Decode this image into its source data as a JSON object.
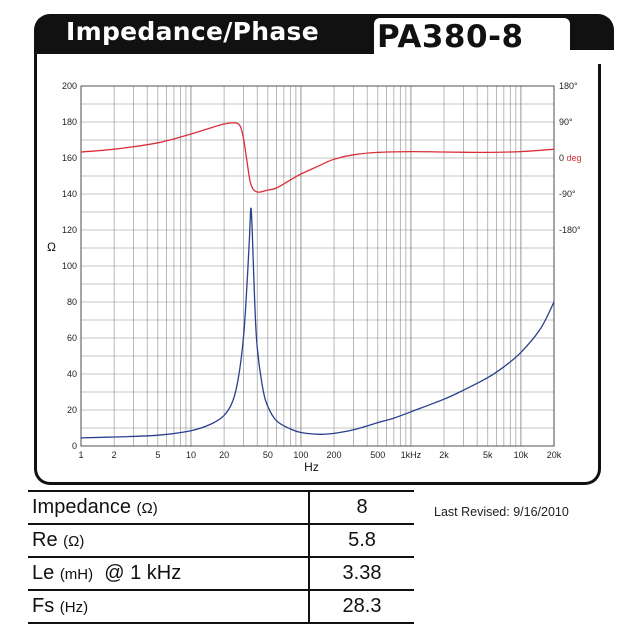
{
  "header": {
    "title": "Impedance/Phase",
    "model": "PA380-8"
  },
  "chart_data": {
    "type": "line",
    "x_scale": "log",
    "xlim": [
      1,
      20000
    ],
    "xlabel": "Hz",
    "x_ticks": [
      {
        "v": 1,
        "label": "1"
      },
      {
        "v": 2,
        "label": "2"
      },
      {
        "v": 5,
        "label": "5"
      },
      {
        "v": 10,
        "label": "10"
      },
      {
        "v": 20,
        "label": "20"
      },
      {
        "v": 50,
        "label": "50"
      },
      {
        "v": 100,
        "label": "100"
      },
      {
        "v": 200,
        "label": "200"
      },
      {
        "v": 500,
        "label": "500"
      },
      {
        "v": 1000,
        "label": "1kHz"
      },
      {
        "v": 2000,
        "label": "2k"
      },
      {
        "v": 5000,
        "label": "5k"
      },
      {
        "v": 10000,
        "label": "10k"
      },
      {
        "v": 20000,
        "label": "20k"
      }
    ],
    "ylabel": "Ω",
    "ylim": [
      0,
      200
    ],
    "y_ticks": [
      0,
      20,
      40,
      60,
      80,
      100,
      120,
      140,
      160,
      180,
      200
    ],
    "y2_ticks": [
      {
        "v": 180,
        "label": "180°"
      },
      {
        "v": 90,
        "label": "90°"
      },
      {
        "v": 0,
        "label": "0",
        "unit": "deg"
      },
      {
        "v": -90,
        "label": "-90°"
      },
      {
        "v": -180,
        "label": "-180°"
      }
    ],
    "grid": true,
    "series": [
      {
        "name": "Impedance",
        "color": "#2b3f8c",
        "axis": "left",
        "x": [
          1,
          2,
          5,
          10,
          15,
          20,
          24,
          27,
          30,
          32,
          34,
          35,
          36,
          38,
          40,
          45,
          50,
          60,
          80,
          100,
          150,
          200,
          300,
          500,
          700,
          1000,
          2000,
          3000,
          5000,
          7000,
          10000,
          15000,
          20000
        ],
        "y": [
          4.5,
          5,
          6,
          8.5,
          12,
          17,
          25,
          38,
          60,
          85,
          115,
          132,
          120,
          80,
          55,
          32,
          22,
          14,
          9.5,
          7.5,
          6.5,
          7,
          9,
          13,
          15.5,
          19,
          26,
          31,
          38,
          44,
          52,
          65,
          80
        ]
      },
      {
        "name": "Phase",
        "color": "#d9313a",
        "axis": "right",
        "x": [
          1,
          2,
          5,
          10,
          15,
          20,
          25,
          28,
          30,
          32,
          35,
          40,
          50,
          60,
          80,
          100,
          150,
          200,
          300,
          500,
          1000,
          2000,
          5000,
          10000,
          20000
        ],
        "y": [
          15,
          22,
          38,
          60,
          75,
          85,
          88,
          80,
          50,
          0,
          -65,
          -85,
          -80,
          -75,
          -55,
          -40,
          -18,
          -3,
          8,
          14,
          16,
          15,
          14,
          16,
          22
        ]
      }
    ]
  },
  "specs": {
    "rows": [
      {
        "label": "Impedance",
        "unit": "(Ω)",
        "value": "8"
      },
      {
        "label": "Re",
        "unit": "(Ω)",
        "value": "5.8"
      },
      {
        "label": "Le",
        "unit": "(mH)",
        "suffix": "@ 1 kHz",
        "value": "3.38"
      },
      {
        "label": "Fs",
        "unit": "(Hz)",
        "value": "28.3"
      }
    ]
  },
  "last_revised": "Last Revised:  9/16/2010",
  "colors": {
    "grid": "#8a8a8a",
    "frame": "#111111",
    "impedance": "#2b3f8c",
    "phase": "#d9313a",
    "deg_unit": "#d9313a"
  }
}
